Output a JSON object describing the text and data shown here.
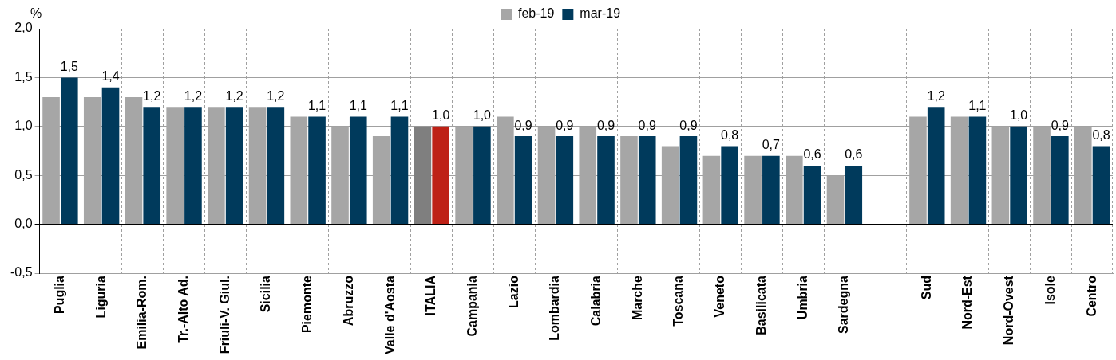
{
  "chart_data": {
    "type": "bar",
    "ylabel": "%",
    "categories": [
      "Puglia",
      "Liguria",
      "Emilia-Rom.",
      "Tr.-Alto Ad.",
      "Friuli-V. Giul.",
      "Sicilia",
      "Piemonte",
      "Abruzzo",
      "Valle d'Aosta",
      "ITALIA",
      "Campania",
      "Lazio",
      "Lombardia",
      "Calabria",
      "Marche",
      "Toscana",
      "Veneto",
      "Basilicata",
      "Umbria",
      "Sardegna",
      null,
      "Sud",
      "Nord-Est",
      "Nord-Ovest",
      "Isole",
      "Centro"
    ],
    "series": [
      {
        "name": "feb-19",
        "color": "#a6a6a6",
        "colors": [
          "#a6a6a6",
          "#a6a6a6",
          "#a6a6a6",
          "#a6a6a6",
          "#a6a6a6",
          "#a6a6a6",
          "#a6a6a6",
          "#a6a6a6",
          "#a6a6a6",
          "#7f7f7f",
          "#a6a6a6",
          "#a6a6a6",
          "#a6a6a6",
          "#a6a6a6",
          "#a6a6a6",
          "#a6a6a6",
          "#a6a6a6",
          "#a6a6a6",
          "#a6a6a6",
          "#a6a6a6",
          "#a6a6a6",
          "#a6a6a6",
          "#a6a6a6",
          "#a6a6a6",
          "#a6a6a6",
          "#a6a6a6"
        ],
        "values": [
          1.3,
          1.3,
          1.3,
          1.2,
          1.2,
          1.2,
          1.1,
          1.0,
          0.9,
          1.0,
          1.0,
          1.1,
          1.0,
          1.0,
          0.9,
          0.8,
          0.7,
          0.7,
          0.7,
          0.5,
          null,
          1.1,
          1.1,
          1.0,
          1.0,
          1.0
        ]
      },
      {
        "name": "mar-19",
        "color": "#003a5c",
        "colors": [
          "#003a5c",
          "#003a5c",
          "#003a5c",
          "#003a5c",
          "#003a5c",
          "#003a5c",
          "#003a5c",
          "#003a5c",
          "#003a5c",
          "#be2116",
          "#003a5c",
          "#003a5c",
          "#003a5c",
          "#003a5c",
          "#003a5c",
          "#003a5c",
          "#003a5c",
          "#003a5c",
          "#003a5c",
          "#003a5c",
          "#003a5c",
          "#003a5c",
          "#003a5c",
          "#003a5c",
          "#003a5c",
          "#003a5c"
        ],
        "values": [
          1.5,
          1.4,
          1.2,
          1.2,
          1.2,
          1.2,
          1.1,
          1.1,
          1.1,
          1.0,
          1.0,
          0.9,
          0.9,
          0.9,
          0.9,
          0.9,
          0.8,
          0.7,
          0.6,
          0.6,
          null,
          1.2,
          1.1,
          1.0,
          0.9,
          0.8
        ],
        "value_labels": [
          "1,5",
          "1,4",
          "1,2",
          "1,2",
          "1,2",
          "1,2",
          "1,1",
          "1,1",
          "1,1",
          "1,0",
          "1,0",
          "0,9",
          "0,9",
          "0,9",
          "0,9",
          "0,9",
          "0,8",
          "0,7",
          "0,6",
          "0,6",
          null,
          "1,2",
          "1,1",
          "1,0",
          "0,9",
          "0,8"
        ]
      }
    ],
    "ylim": [
      -0.5,
      2.0
    ],
    "yticks": [
      {
        "value": -0.5,
        "label": "-0,5"
      },
      {
        "value": 0,
        "label": "0,0"
      },
      {
        "value": 0.5,
        "label": "0,5"
      },
      {
        "value": 1.0,
        "label": "1,0"
      },
      {
        "value": 1.5,
        "label": "1,5"
      },
      {
        "value": 2.0,
        "label": "2,0"
      }
    ],
    "grid": true,
    "legend": "top"
  }
}
